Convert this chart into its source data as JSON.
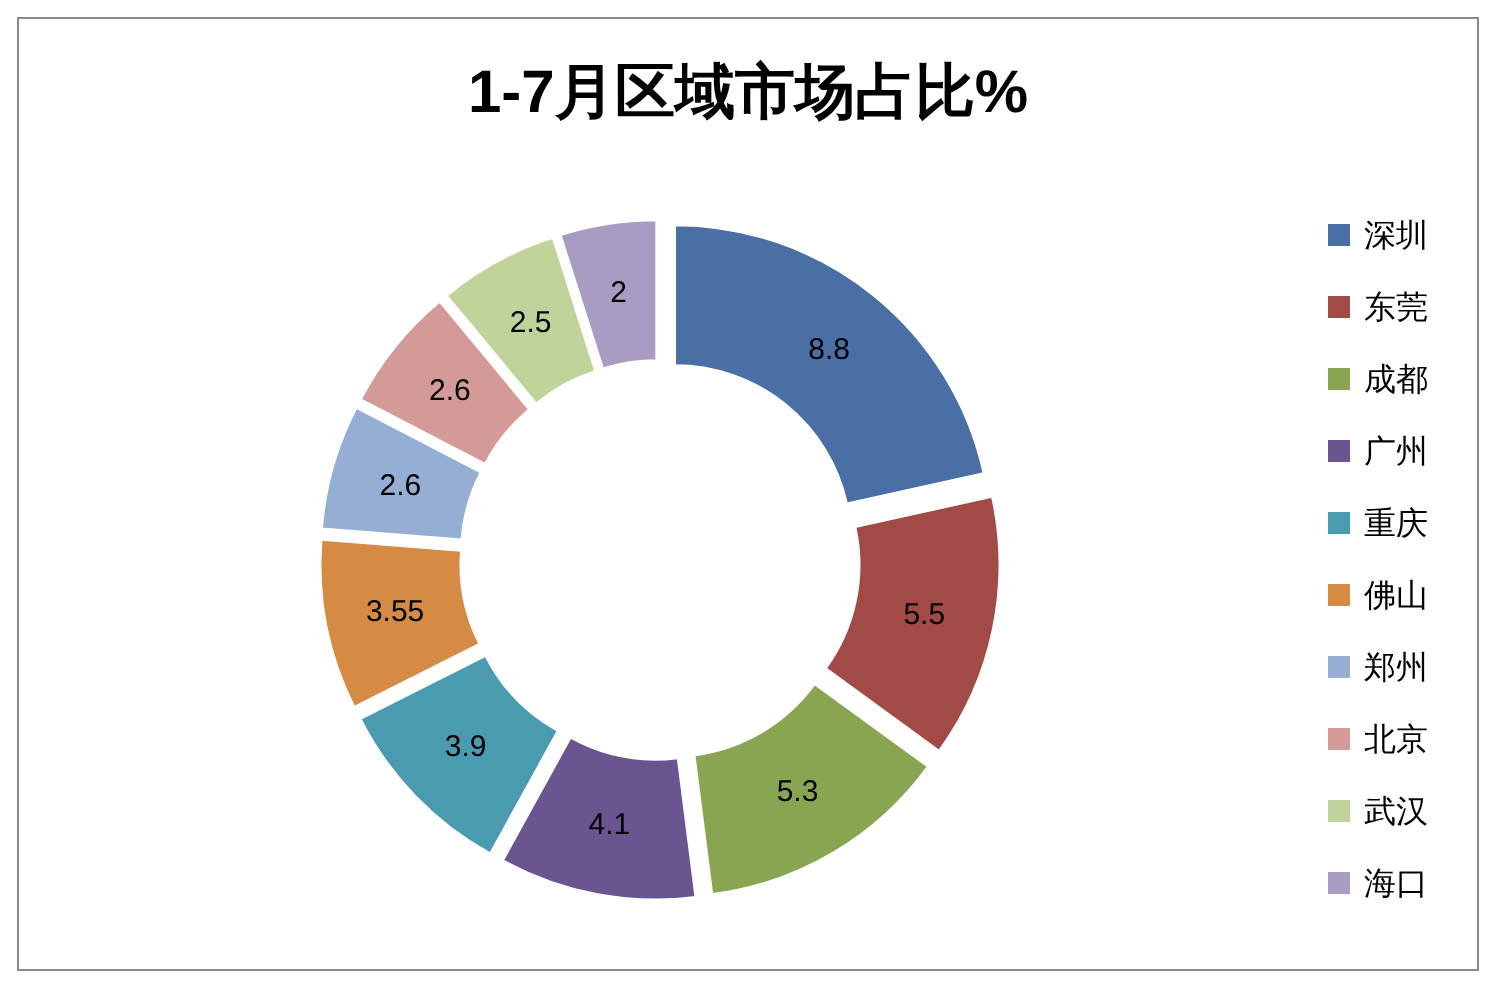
{
  "chart_data": {
    "type": "donut",
    "title": "1-7月区域市场占比%",
    "categories": [
      "深圳",
      "东莞",
      "成都",
      "广州",
      "重庆",
      "佛山",
      "郑州",
      "北京",
      "武汉",
      "海口"
    ],
    "values": [
      8.8,
      5.5,
      5.3,
      4.1,
      3.9,
      3.55,
      2.6,
      2.6,
      2.5,
      2
    ],
    "colors": [
      "#4a6fa5",
      "#a24a46",
      "#8aa552",
      "#6b5590",
      "#4a9ab0",
      "#d68b45",
      "#94aed4",
      "#d49a98",
      "#bfd39a",
      "#a99cc2"
    ],
    "data_labels": true,
    "legend": "right"
  }
}
